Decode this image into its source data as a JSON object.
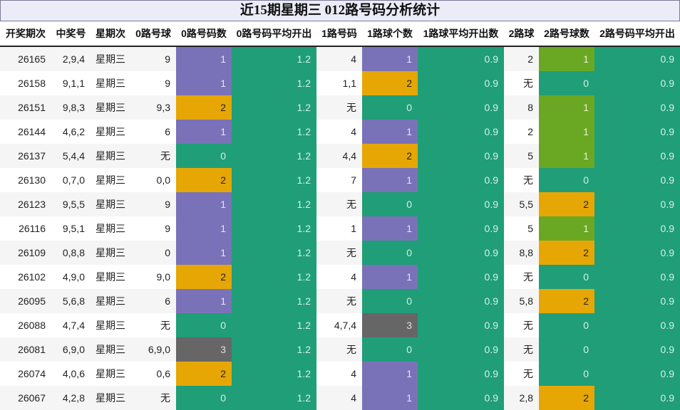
{
  "title": "近15期星期三 012路号码分析统计",
  "headers": [
    "开奖期次",
    "中奖号",
    "星期次",
    "0路号球",
    "0路号码数",
    "0路号码平均开出",
    "1路号码",
    "1路球个数",
    "1路球平均开出数",
    "2路球",
    "2路号球数",
    "2路号码平均开出"
  ],
  "colors": {
    "teal": "#1f9e78",
    "purple": "#7a72b8",
    "gold": "#e6a705",
    "gray": "#666666",
    "green": "#6aa823"
  },
  "rows": [
    [
      "26165",
      "2,9,4",
      "星期三",
      "9",
      "1",
      "1.2",
      "4",
      "1",
      "0.9",
      "2",
      "1",
      "0.9"
    ],
    [
      "26158",
      "9,1,1",
      "星期三",
      "9",
      "1",
      "1.2",
      "1,1",
      "2",
      "0.9",
      "无",
      "0",
      "0.9"
    ],
    [
      "26151",
      "9,8,3",
      "星期三",
      "9,3",
      "2",
      "1.2",
      "无",
      "0",
      "0.9",
      "8",
      "1",
      "0.9"
    ],
    [
      "26144",
      "4,6,2",
      "星期三",
      "6",
      "1",
      "1.2",
      "4",
      "1",
      "0.9",
      "2",
      "1",
      "0.9"
    ],
    [
      "26137",
      "5,4,4",
      "星期三",
      "无",
      "0",
      "1.2",
      "4,4",
      "2",
      "0.9",
      "5",
      "1",
      "0.9"
    ],
    [
      "26130",
      "0,7,0",
      "星期三",
      "0,0",
      "2",
      "1.2",
      "7",
      "1",
      "0.9",
      "无",
      "0",
      "0.9"
    ],
    [
      "26123",
      "9,5,5",
      "星期三",
      "9",
      "1",
      "1.2",
      "无",
      "0",
      "0.9",
      "5,5",
      "2",
      "0.9"
    ],
    [
      "26116",
      "9,5,1",
      "星期三",
      "9",
      "1",
      "1.2",
      "1",
      "1",
      "0.9",
      "5",
      "1",
      "0.9"
    ],
    [
      "26109",
      "0,8,8",
      "星期三",
      "0",
      "1",
      "1.2",
      "无",
      "0",
      "0.9",
      "8,8",
      "2",
      "0.9"
    ],
    [
      "26102",
      "4,9,0",
      "星期三",
      "9,0",
      "2",
      "1.2",
      "4",
      "1",
      "0.9",
      "无",
      "0",
      "0.9"
    ],
    [
      "26095",
      "5,6,8",
      "星期三",
      "6",
      "1",
      "1.2",
      "无",
      "0",
      "0.9",
      "5,8",
      "2",
      "0.9"
    ],
    [
      "26088",
      "4,7,4",
      "星期三",
      "无",
      "0",
      "1.2",
      "4,7,4",
      "3",
      "0.9",
      "无",
      "0",
      "0.9"
    ],
    [
      "26081",
      "6,9,0",
      "星期三",
      "6,9,0",
      "3",
      "1.2",
      "无",
      "0",
      "0.9",
      "无",
      "0",
      "0.9"
    ],
    [
      "26074",
      "4,0,6",
      "星期三",
      "0,6",
      "2",
      "1.2",
      "4",
      "1",
      "0.9",
      "无",
      "0",
      "0.9"
    ],
    [
      "26067",
      "4,2,8",
      "星期三",
      "无",
      "0",
      "1.2",
      "4",
      "1",
      "0.9",
      "2,8",
      "2",
      "0.9"
    ]
  ]
}
